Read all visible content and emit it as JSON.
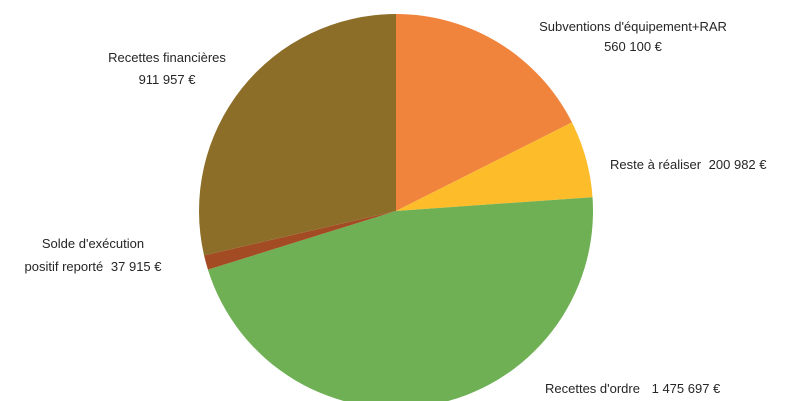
{
  "chart_data": {
    "type": "pie",
    "title": "",
    "start_angle_deg": 0,
    "direction": "clockwise",
    "legend": "none",
    "slices": [
      {
        "label": "Subventions d'équipement+RAR",
        "value_label": "560 100 €",
        "value": 560100,
        "color": "#F0843C"
      },
      {
        "label": "Reste à réaliser",
        "value_label": "200 982 €",
        "value": 200982,
        "color": "#FDBD2A"
      },
      {
        "label": "Recettes d'ordre",
        "value_label": "1 475 697 €",
        "value": 1475697,
        "color": "#6FB055"
      },
      {
        "label": "Solde d'exécution positif reporté",
        "value_label": "37 915 €",
        "value": 37915,
        "color": "#A34B22"
      },
      {
        "label": "Recettes financières",
        "value_label": "911 957 €",
        "value": 911957,
        "color": "#8C6E28"
      }
    ]
  }
}
